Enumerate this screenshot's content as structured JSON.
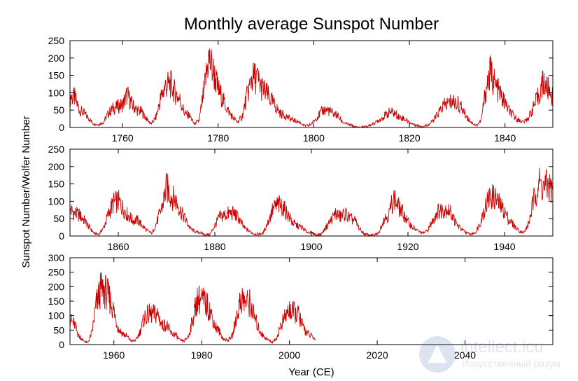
{
  "chart_data": {
    "type": "line",
    "title": "Monthly average Sunspot Number",
    "xlabel": "Year (CE)",
    "ylabel": "Sunspot Number/Wolfer Number",
    "line_color": "#cc0000",
    "grid": false,
    "panels": [
      {
        "xlim": [
          1749,
          1850
        ],
        "ylim": [
          0,
          250
        ],
        "x_ticks": [
          1760,
          1780,
          1800,
          1820,
          1840
        ],
        "y_ticks": [
          0,
          50,
          100,
          150,
          200,
          250
        ],
        "series": [
          {
            "x": [
              1749,
              1750,
              1751,
              1752,
              1753,
              1754,
              1755,
              1756,
              1757,
              1758,
              1759,
              1760,
              1761,
              1762,
              1763,
              1764,
              1765,
              1766,
              1767,
              1768,
              1769,
              1770,
              1771,
              1772,
              1773,
              1774,
              1775,
              1776,
              1777,
              1778,
              1779,
              1780,
              1781,
              1782,
              1783,
              1784,
              1785,
              1786,
              1787,
              1788,
              1789,
              1790,
              1791,
              1792,
              1793,
              1794,
              1795,
              1796,
              1797,
              1798,
              1799,
              1800,
              1801,
              1802,
              1803,
              1804,
              1805,
              1806,
              1807,
              1808,
              1809,
              1810,
              1811,
              1812,
              1813,
              1814,
              1815,
              1816,
              1817,
              1818,
              1819,
              1820,
              1821,
              1822,
              1823,
              1824,
              1825,
              1826,
              1827,
              1828,
              1829,
              1830,
              1831,
              1832,
              1833,
              1834,
              1835,
              1836,
              1837,
              1838,
              1839,
              1840,
              1841,
              1842,
              1843,
              1844,
              1845,
              1846,
              1847,
              1848,
              1849,
              1850
            ],
            "y": [
              90,
              85,
              50,
              40,
              25,
              10,
              8,
              15,
              40,
              55,
              60,
              65,
              95,
              65,
              50,
              45,
              25,
              10,
              30,
              85,
              120,
              125,
              100,
              80,
              40,
              35,
              10,
              20,
              100,
              200,
              160,
              110,
              80,
              50,
              30,
              15,
              30,
              90,
              140,
              145,
              115,
              100,
              80,
              60,
              40,
              35,
              25,
              20,
              15,
              5,
              5,
              18,
              35,
              50,
              50,
              40,
              35,
              15,
              10,
              5,
              0,
              0,
              2,
              8,
              15,
              25,
              35,
              45,
              40,
              30,
              25,
              15,
              8,
              5,
              3,
              8,
              20,
              40,
              60,
              70,
              75,
              70,
              55,
              30,
              15,
              5,
              20,
              110,
              160,
              120,
              95,
              70,
              45,
              30,
              20,
              15,
              30,
              60,
              90,
              130,
              110,
              90
            ]
          }
        ]
      },
      {
        "xlim": [
          1850,
          1950
        ],
        "ylim": [
          0,
          250
        ],
        "x_ticks": [
          1860,
          1880,
          1900,
          1920,
          1940
        ],
        "y_ticks": [
          0,
          50,
          100,
          150,
          200,
          250
        ],
        "series": [
          {
            "x": [
              1850,
              1851,
              1852,
              1853,
              1854,
              1855,
              1856,
              1857,
              1858,
              1859,
              1860,
              1861,
              1862,
              1863,
              1864,
              1865,
              1866,
              1867,
              1868,
              1869,
              1870,
              1871,
              1872,
              1873,
              1874,
              1875,
              1876,
              1877,
              1878,
              1879,
              1880,
              1881,
              1882,
              1883,
              1884,
              1885,
              1886,
              1887,
              1888,
              1889,
              1890,
              1891,
              1892,
              1893,
              1894,
              1895,
              1896,
              1897,
              1898,
              1899,
              1900,
              1901,
              1902,
              1903,
              1904,
              1905,
              1906,
              1907,
              1908,
              1909,
              1910,
              1911,
              1912,
              1913,
              1914,
              1915,
              1916,
              1917,
              1918,
              1919,
              1920,
              1921,
              1922,
              1923,
              1924,
              1925,
              1926,
              1927,
              1928,
              1929,
              1930,
              1931,
              1932,
              1933,
              1934,
              1935,
              1936,
              1937,
              1938,
              1939,
              1940,
              1941,
              1942,
              1943,
              1944,
              1945,
              1946,
              1947,
              1948,
              1949,
              1950
            ],
            "y": [
              75,
              65,
              60,
              45,
              25,
              8,
              5,
              25,
              65,
              95,
              100,
              80,
              60,
              45,
              45,
              30,
              15,
              8,
              40,
              80,
              140,
              115,
              100,
              70,
              45,
              20,
              12,
              10,
              3,
              5,
              30,
              55,
              60,
              65,
              65,
              50,
              25,
              15,
              7,
              5,
              8,
              40,
              75,
              90,
              85,
              65,
              40,
              30,
              25,
              12,
              10,
              3,
              5,
              25,
              45,
              65,
              55,
              65,
              50,
              45,
              20,
              5,
              3,
              2,
              10,
              50,
              60,
              110,
              85,
              65,
              40,
              25,
              15,
              8,
              15,
              40,
              70,
              75,
              80,
              65,
              35,
              20,
              10,
              5,
              10,
              40,
              85,
              115,
              110,
              90,
              70,
              45,
              30,
              15,
              10,
              35,
              100,
              155,
              140,
              145,
              130
            ]
          }
        ]
      },
      {
        "xlim": [
          1950,
          2060
        ],
        "ylim": [
          0,
          300
        ],
        "x_ticks": [
          1960,
          1980,
          2000,
          2020,
          2040
        ],
        "y_ticks": [
          0,
          50,
          100,
          150,
          200,
          250,
          300
        ],
        "series": [
          {
            "x": [
              1950,
              1951,
              1952,
              1953,
              1954,
              1955,
              1956,
              1957,
              1958,
              1959,
              1960,
              1961,
              1962,
              1963,
              1964,
              1965,
              1966,
              1967,
              1968,
              1969,
              1970,
              1971,
              1972,
              1973,
              1974,
              1975,
              1976,
              1977,
              1978,
              1979,
              1980,
              1981,
              1982,
              1983,
              1984,
              1985,
              1986,
              1987,
              1988,
              1989,
              1990,
              1991,
              1992,
              1993,
              1994,
              1995,
              1996,
              1997,
              1998,
              1999,
              2000,
              2001,
              2002,
              2003,
              2004,
              2005,
              2006
            ],
            "y": [
              85,
              70,
              30,
              15,
              5,
              40,
              140,
              190,
              185,
              160,
              115,
              55,
              38,
              28,
              12,
              15,
              45,
              95,
              105,
              105,
              105,
              65,
              70,
              38,
              35,
              15,
              12,
              28,
              90,
              155,
              155,
              140,
              115,
              65,
              45,
              18,
              15,
              30,
              100,
              160,
              145,
              145,
              95,
              55,
              30,
              18,
              8,
              20,
              65,
              95,
              120,
              110,
              105,
              65,
              40,
              30,
              15
            ]
          }
        ]
      }
    ]
  },
  "watermark": {
    "line1": "intellect.icu",
    "line2": "Искусственный разум"
  }
}
